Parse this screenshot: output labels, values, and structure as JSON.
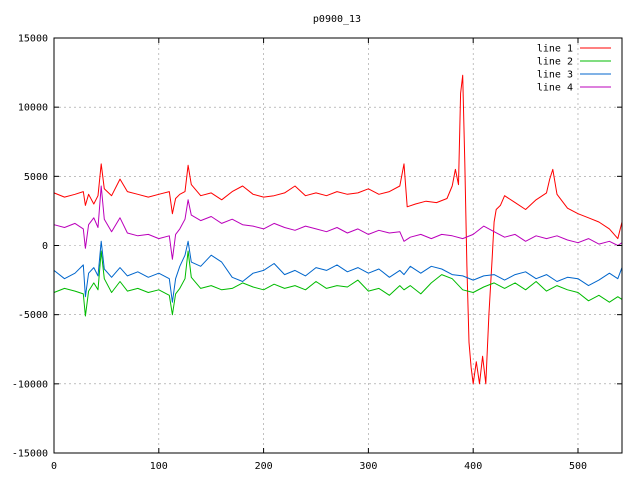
{
  "chart_data": {
    "type": "line",
    "title": "p0900_13",
    "xlabel": "",
    "ylabel": "",
    "xlim": [
      0,
      542
    ],
    "ylim": [
      -15000,
      15000
    ],
    "xticks": [
      0,
      100,
      200,
      300,
      400,
      500
    ],
    "yticks": [
      -15000,
      -10000,
      -5000,
      0,
      5000,
      10000,
      15000
    ],
    "grid": true,
    "legend_position": "top-right",
    "series": [
      {
        "name": "line 1",
        "color": "#ff0000",
        "points": [
          [
            0,
            3800
          ],
          [
            10,
            3500
          ],
          [
            20,
            3700
          ],
          [
            28,
            3900
          ],
          [
            30,
            2900
          ],
          [
            33,
            3700
          ],
          [
            38,
            3000
          ],
          [
            42,
            3600
          ],
          [
            45,
            5900
          ],
          [
            48,
            4100
          ],
          [
            55,
            3600
          ],
          [
            63,
            4800
          ],
          [
            70,
            3900
          ],
          [
            80,
            3700
          ],
          [
            90,
            3500
          ],
          [
            100,
            3700
          ],
          [
            110,
            3900
          ],
          [
            113,
            2300
          ],
          [
            116,
            3400
          ],
          [
            120,
            3700
          ],
          [
            125,
            3900
          ],
          [
            128,
            5800
          ],
          [
            131,
            4400
          ],
          [
            140,
            3600
          ],
          [
            150,
            3800
          ],
          [
            160,
            3300
          ],
          [
            170,
            3900
          ],
          [
            180,
            4300
          ],
          [
            190,
            3700
          ],
          [
            200,
            3500
          ],
          [
            210,
            3600
          ],
          [
            220,
            3800
          ],
          [
            230,
            4300
          ],
          [
            240,
            3600
          ],
          [
            250,
            3800
          ],
          [
            260,
            3600
          ],
          [
            270,
            3900
          ],
          [
            280,
            3700
          ],
          [
            290,
            3800
          ],
          [
            300,
            4100
          ],
          [
            310,
            3700
          ],
          [
            320,
            3900
          ],
          [
            330,
            4300
          ],
          [
            334,
            5900
          ],
          [
            337,
            2800
          ],
          [
            345,
            3000
          ],
          [
            355,
            3200
          ],
          [
            365,
            3100
          ],
          [
            375,
            3400
          ],
          [
            380,
            4300
          ],
          [
            383,
            5500
          ],
          [
            386,
            4400
          ],
          [
            388,
            11000
          ],
          [
            390,
            12300
          ],
          [
            392,
            6000
          ],
          [
            394,
            -1500
          ],
          [
            396,
            -7000
          ],
          [
            398,
            -8800
          ],
          [
            400,
            -10000
          ],
          [
            403,
            -8400
          ],
          [
            406,
            -10000
          ],
          [
            409,
            -8000
          ],
          [
            412,
            -10000
          ],
          [
            415,
            -5000
          ],
          [
            418,
            -1000
          ],
          [
            420,
            1700
          ],
          [
            422,
            2600
          ],
          [
            426,
            2900
          ],
          [
            430,
            3600
          ],
          [
            440,
            3100
          ],
          [
            450,
            2600
          ],
          [
            460,
            3300
          ],
          [
            470,
            3800
          ],
          [
            473,
            4800
          ],
          [
            476,
            5500
          ],
          [
            480,
            3700
          ],
          [
            490,
            2700
          ],
          [
            500,
            2300
          ],
          [
            510,
            2000
          ],
          [
            520,
            1700
          ],
          [
            530,
            1200
          ],
          [
            538,
            500
          ],
          [
            542,
            1700
          ]
        ]
      },
      {
        "name": "line 2",
        "color": "#00bb00",
        "points": [
          [
            0,
            -3400
          ],
          [
            10,
            -3100
          ],
          [
            20,
            -3300
          ],
          [
            28,
            -3500
          ],
          [
            30,
            -5100
          ],
          [
            33,
            -3300
          ],
          [
            38,
            -2700
          ],
          [
            42,
            -3200
          ],
          [
            45,
            -400
          ],
          [
            48,
            -2400
          ],
          [
            55,
            -3400
          ],
          [
            63,
            -2600
          ],
          [
            70,
            -3300
          ],
          [
            80,
            -3100
          ],
          [
            90,
            -3400
          ],
          [
            100,
            -3200
          ],
          [
            110,
            -3600
          ],
          [
            113,
            -5000
          ],
          [
            116,
            -3500
          ],
          [
            120,
            -3100
          ],
          [
            125,
            -2400
          ],
          [
            128,
            -400
          ],
          [
            131,
            -2300
          ],
          [
            140,
            -3100
          ],
          [
            150,
            -2900
          ],
          [
            160,
            -3200
          ],
          [
            170,
            -3100
          ],
          [
            180,
            -2700
          ],
          [
            190,
            -3000
          ],
          [
            200,
            -3200
          ],
          [
            210,
            -2800
          ],
          [
            220,
            -3100
          ],
          [
            230,
            -2900
          ],
          [
            240,
            -3200
          ],
          [
            250,
            -2600
          ],
          [
            260,
            -3100
          ],
          [
            270,
            -2900
          ],
          [
            280,
            -3000
          ],
          [
            290,
            -2500
          ],
          [
            300,
            -3300
          ],
          [
            310,
            -3100
          ],
          [
            320,
            -3600
          ],
          [
            330,
            -2900
          ],
          [
            334,
            -3200
          ],
          [
            340,
            -2900
          ],
          [
            350,
            -3500
          ],
          [
            360,
            -2700
          ],
          [
            370,
            -2100
          ],
          [
            380,
            -2400
          ],
          [
            390,
            -3200
          ],
          [
            400,
            -3400
          ],
          [
            410,
            -3000
          ],
          [
            420,
            -2700
          ],
          [
            430,
            -3100
          ],
          [
            440,
            -2700
          ],
          [
            450,
            -3200
          ],
          [
            460,
            -2600
          ],
          [
            470,
            -3300
          ],
          [
            480,
            -2900
          ],
          [
            490,
            -3200
          ],
          [
            500,
            -3400
          ],
          [
            510,
            -4000
          ],
          [
            520,
            -3600
          ],
          [
            530,
            -4100
          ],
          [
            538,
            -3700
          ],
          [
            542,
            -3900
          ]
        ]
      },
      {
        "name": "line 3",
        "color": "#0066cc",
        "points": [
          [
            0,
            -1800
          ],
          [
            10,
            -2400
          ],
          [
            20,
            -2000
          ],
          [
            28,
            -1400
          ],
          [
            30,
            -3700
          ],
          [
            33,
            -2000
          ],
          [
            38,
            -1600
          ],
          [
            42,
            -2200
          ],
          [
            45,
            300
          ],
          [
            48,
            -1700
          ],
          [
            55,
            -2300
          ],
          [
            63,
            -1600
          ],
          [
            70,
            -2200
          ],
          [
            80,
            -1900
          ],
          [
            90,
            -2300
          ],
          [
            100,
            -2000
          ],
          [
            110,
            -2400
          ],
          [
            113,
            -4100
          ],
          [
            116,
            -2400
          ],
          [
            120,
            -1500
          ],
          [
            125,
            -700
          ],
          [
            128,
            300
          ],
          [
            131,
            -1200
          ],
          [
            140,
            -1500
          ],
          [
            150,
            -700
          ],
          [
            160,
            -1200
          ],
          [
            170,
            -2300
          ],
          [
            180,
            -2600
          ],
          [
            190,
            -2000
          ],
          [
            200,
            -1800
          ],
          [
            210,
            -1300
          ],
          [
            220,
            -2100
          ],
          [
            230,
            -1800
          ],
          [
            240,
            -2200
          ],
          [
            250,
            -1600
          ],
          [
            260,
            -1800
          ],
          [
            270,
            -1400
          ],
          [
            280,
            -1900
          ],
          [
            290,
            -1600
          ],
          [
            300,
            -2000
          ],
          [
            310,
            -1700
          ],
          [
            320,
            -2300
          ],
          [
            330,
            -1800
          ],
          [
            334,
            -2100
          ],
          [
            340,
            -1500
          ],
          [
            350,
            -2000
          ],
          [
            360,
            -1500
          ],
          [
            370,
            -1700
          ],
          [
            380,
            -2100
          ],
          [
            390,
            -2200
          ],
          [
            400,
            -2500
          ],
          [
            410,
            -2200
          ],
          [
            420,
            -2100
          ],
          [
            430,
            -2500
          ],
          [
            440,
            -2100
          ],
          [
            450,
            -1900
          ],
          [
            460,
            -2400
          ],
          [
            470,
            -2100
          ],
          [
            480,
            -2600
          ],
          [
            490,
            -2300
          ],
          [
            500,
            -2400
          ],
          [
            510,
            -2900
          ],
          [
            520,
            -2500
          ],
          [
            530,
            -2000
          ],
          [
            538,
            -2400
          ],
          [
            542,
            -1600
          ]
        ]
      },
      {
        "name": "line 4",
        "color": "#bb00bb",
        "points": [
          [
            0,
            1500
          ],
          [
            10,
            1300
          ],
          [
            20,
            1600
          ],
          [
            28,
            1200
          ],
          [
            30,
            -200
          ],
          [
            33,
            1500
          ],
          [
            38,
            2000
          ],
          [
            42,
            1300
          ],
          [
            45,
            4300
          ],
          [
            48,
            1900
          ],
          [
            55,
            1000
          ],
          [
            63,
            2000
          ],
          [
            70,
            900
          ],
          [
            80,
            700
          ],
          [
            90,
            800
          ],
          [
            100,
            500
          ],
          [
            110,
            700
          ],
          [
            113,
            -1000
          ],
          [
            116,
            800
          ],
          [
            120,
            1200
          ],
          [
            125,
            1900
          ],
          [
            128,
            3300
          ],
          [
            131,
            2200
          ],
          [
            140,
            1800
          ],
          [
            150,
            2100
          ],
          [
            160,
            1600
          ],
          [
            170,
            1900
          ],
          [
            180,
            1500
          ],
          [
            190,
            1400
          ],
          [
            200,
            1200
          ],
          [
            210,
            1600
          ],
          [
            220,
            1300
          ],
          [
            230,
            1100
          ],
          [
            240,
            1400
          ],
          [
            250,
            1200
          ],
          [
            260,
            1000
          ],
          [
            270,
            1300
          ],
          [
            280,
            900
          ],
          [
            290,
            1200
          ],
          [
            300,
            800
          ],
          [
            310,
            1100
          ],
          [
            320,
            900
          ],
          [
            330,
            1000
          ],
          [
            334,
            300
          ],
          [
            340,
            600
          ],
          [
            350,
            800
          ],
          [
            360,
            500
          ],
          [
            370,
            800
          ],
          [
            380,
            700
          ],
          [
            390,
            500
          ],
          [
            400,
            800
          ],
          [
            410,
            1400
          ],
          [
            420,
            1000
          ],
          [
            430,
            600
          ],
          [
            440,
            800
          ],
          [
            450,
            300
          ],
          [
            460,
            700
          ],
          [
            470,
            500
          ],
          [
            480,
            700
          ],
          [
            490,
            400
          ],
          [
            500,
            200
          ],
          [
            510,
            500
          ],
          [
            520,
            100
          ],
          [
            530,
            300
          ],
          [
            538,
            0
          ],
          [
            542,
            200
          ]
        ]
      }
    ]
  }
}
